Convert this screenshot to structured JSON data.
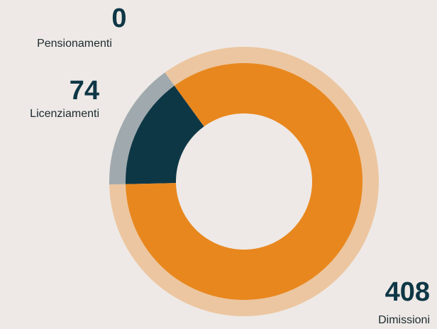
{
  "chart_data": {
    "type": "donut",
    "categories": [
      "Pensionamenti",
      "Licenziamenti",
      "Dimissioni"
    ],
    "values": [
      0,
      74,
      408
    ],
    "colors": [
      "#9aa5a9",
      "#0e3746",
      "#e8871e"
    ]
  }
}
